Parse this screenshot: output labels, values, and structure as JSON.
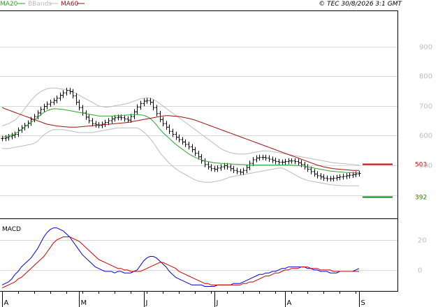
{
  "header": {
    "legend": [
      {
        "label": "MA20",
        "color": "#2aa52a"
      },
      {
        "label": "BBands",
        "color": "#bbbbbb"
      },
      {
        "label": "MA60",
        "color": "#a01010"
      }
    ],
    "copyright": "© TEC 30/8/2026 3:1 GMT"
  },
  "chart_data": [
    {
      "type": "line",
      "panel": "price",
      "ylim": [
        320,
        1020
      ],
      "yticks": [
        "900",
        "800",
        "700",
        "600",
        "500"
      ],
      "ytick_values": [
        900,
        800,
        700,
        600,
        500
      ],
      "xticks": [
        "A",
        "M",
        "J",
        "J",
        "A",
        "S"
      ],
      "xtick_index": [
        0,
        24,
        44,
        66,
        88,
        111
      ],
      "n_bars": 112,
      "price_close": [
        590,
        592,
        596,
        600,
        604,
        618,
        626,
        634,
        642,
        654,
        664,
        676,
        688,
        698,
        706,
        712,
        718,
        726,
        736,
        744,
        752,
        748,
        734,
        712,
        694,
        676,
        662,
        650,
        640,
        636,
        634,
        638,
        644,
        650,
        656,
        660,
        662,
        660,
        656,
        652,
        664,
        680,
        696,
        708,
        716,
        718,
        712,
        694,
        674,
        654,
        640,
        628,
        614,
        604,
        594,
        586,
        578,
        570,
        562,
        552,
        540,
        528,
        514,
        502,
        494,
        488,
        486,
        490,
        494,
        498,
        494,
        488,
        482,
        478,
        476,
        482,
        492,
        506,
        518,
        524,
        526,
        526,
        524,
        520,
        516,
        512,
        510,
        510,
        512,
        514,
        514,
        512,
        508,
        502,
        494,
        486,
        478,
        470,
        464,
        460,
        456,
        454,
        454,
        456,
        458,
        460,
        462,
        464,
        466,
        468,
        470,
        472
      ],
      "series": [
        {
          "name": "MA20",
          "color": "#2aa52a",
          "values": [
            594,
            596,
            598,
            602,
            606,
            612,
            620,
            628,
            636,
            644,
            652,
            660,
            670,
            678,
            684,
            688,
            690,
            690,
            689,
            688,
            686,
            684,
            682,
            680,
            678,
            676,
            674,
            672,
            670,
            668,
            666,
            666,
            666,
            666,
            666,
            666,
            667,
            668,
            668,
            669,
            670,
            671,
            671,
            670,
            668,
            664,
            658,
            648,
            636,
            622,
            610,
            600,
            590,
            580,
            570,
            562,
            554,
            546,
            538,
            532,
            526,
            522,
            518,
            514,
            512,
            510,
            508,
            507,
            506,
            505,
            504,
            504,
            503,
            503,
            502,
            502,
            501,
            500,
            500,
            500,
            500,
            500,
            500,
            500,
            500,
            500,
            500,
            500,
            500,
            500,
            500,
            499,
            499,
            498,
            496,
            494,
            492,
            490,
            488,
            486,
            484,
            482,
            480,
            479,
            478,
            477,
            476,
            475,
            475,
            474,
            474,
            474
          ]
        },
        {
          "name": "MA60",
          "color": "#a01010",
          "values": [
            695,
            690,
            686,
            682,
            678,
            674,
            670,
            666,
            662,
            658,
            654,
            650,
            646,
            642,
            638,
            636,
            634,
            632,
            631,
            630,
            629,
            628,
            628,
            628,
            629,
            630,
            631,
            632,
            633,
            634,
            635,
            636,
            637,
            638,
            639,
            640,
            641,
            642,
            643,
            644,
            646,
            648,
            650,
            652,
            654,
            656,
            658,
            660,
            662,
            664,
            666,
            667,
            667,
            666,
            665,
            664,
            662,
            660,
            658,
            655,
            652,
            648,
            644,
            640,
            636,
            632,
            628,
            624,
            620,
            616,
            612,
            608,
            604,
            600,
            596,
            592,
            588,
            584,
            580,
            576,
            572,
            568,
            564,
            560,
            556,
            552,
            548,
            544,
            540,
            536,
            532,
            528,
            524,
            520,
            516,
            512,
            508,
            504,
            500,
            497,
            494,
            492,
            490,
            488,
            487,
            486,
            485,
            484,
            483,
            482,
            482,
            482
          ]
        },
        {
          "name": "BBands-upper",
          "color": "#bbbbbb",
          "values": [
            632,
            636,
            640,
            646,
            652,
            662,
            676,
            690,
            704,
            718,
            730,
            740,
            748,
            754,
            758,
            760,
            760,
            760,
            758,
            756,
            754,
            752,
            748,
            742,
            736,
            730,
            724,
            718,
            712,
            706,
            700,
            698,
            696,
            696,
            698,
            700,
            702,
            704,
            706,
            708,
            712,
            716,
            720,
            724,
            726,
            728,
            726,
            722,
            716,
            708,
            700,
            692,
            684,
            676,
            668,
            660,
            652,
            644,
            636,
            628,
            620,
            612,
            604,
            596,
            588,
            580,
            572,
            564,
            556,
            550,
            546,
            542,
            540,
            538,
            537,
            537,
            538,
            540,
            542,
            544,
            546,
            548,
            548,
            548,
            546,
            544,
            542,
            540,
            538,
            536,
            534,
            532,
            530,
            528,
            526,
            524,
            522,
            520,
            518,
            516,
            514,
            512,
            510,
            508,
            507,
            506,
            505,
            504,
            503,
            502,
            501,
            500
          ]
        },
        {
          "name": "BBands-lower",
          "color": "#bbbbbb",
          "values": [
            556,
            556,
            556,
            558,
            560,
            562,
            564,
            566,
            568,
            570,
            574,
            580,
            592,
            602,
            610,
            616,
            620,
            620,
            620,
            620,
            618,
            616,
            614,
            612,
            610,
            610,
            610,
            610,
            610,
            612,
            614,
            616,
            618,
            620,
            622,
            624,
            626,
            626,
            626,
            626,
            626,
            626,
            626,
            620,
            612,
            602,
            590,
            576,
            560,
            544,
            530,
            518,
            506,
            496,
            488,
            480,
            474,
            468,
            462,
            456,
            450,
            446,
            444,
            442,
            442,
            442,
            444,
            446,
            448,
            452,
            456,
            460,
            462,
            464,
            466,
            468,
            470,
            472,
            474,
            476,
            478,
            480,
            482,
            484,
            486,
            488,
            490,
            490,
            486,
            480,
            474,
            468,
            462,
            456,
            452,
            448,
            446,
            444,
            442,
            440,
            438,
            436,
            434,
            433,
            432,
            431,
            430,
            430,
            430,
            430,
            430,
            430
          ]
        }
      ],
      "annotations": [
        {
          "label": "503",
          "value": 503,
          "color": "#cc0000",
          "text_color": "#cc0000"
        },
        {
          "label": "392",
          "value": 392,
          "color": "#008800",
          "text_color": "#2e7d00"
        }
      ]
    },
    {
      "type": "line",
      "panel": "macd",
      "title": "MACD",
      "ylim": [
        -14,
        32
      ],
      "yticks": [
        "20",
        "0"
      ],
      "ytick_values": [
        20,
        0
      ],
      "n_bars": 112,
      "series": [
        {
          "name": "MACD",
          "color": "#0000dd",
          "values": [
            -10,
            -9,
            -8,
            -6,
            -3,
            -1,
            2,
            4,
            6,
            8,
            11,
            14,
            18,
            22,
            25,
            27,
            28,
            28,
            27,
            26,
            24,
            22,
            19,
            16,
            13,
            10,
            8,
            6,
            4,
            2,
            1,
            0,
            -1,
            -1,
            -1,
            -2,
            -1,
            -1,
            -2,
            -2,
            -2,
            -1,
            0,
            3,
            6,
            8,
            9,
            9,
            8,
            6,
            4,
            2,
            -1,
            -3,
            -5,
            -6,
            -7,
            -8,
            -9,
            -10,
            -10,
            -10,
            -10,
            -11,
            -11,
            -11,
            -11,
            -10,
            -10,
            -10,
            -10,
            -10,
            -9,
            -9,
            -9,
            -8,
            -7,
            -6,
            -5,
            -4,
            -3,
            -3,
            -2,
            -2,
            -1,
            -1,
            0,
            1,
            1,
            2,
            2,
            2,
            2,
            2,
            2,
            1,
            1,
            0,
            0,
            -1,
            -1,
            -1,
            -2,
            -2,
            -2,
            -1,
            -1,
            -1,
            -1,
            -1,
            0,
            1
          ]
        },
        {
          "name": "Signal",
          "color": "#cc0000",
          "values": [
            -12,
            -11,
            -10,
            -9,
            -8,
            -6,
            -5,
            -3,
            -1,
            1,
            3,
            5,
            7,
            9,
            12,
            15,
            18,
            20,
            21,
            22,
            22,
            22,
            21,
            20,
            19,
            17,
            15,
            13,
            11,
            9,
            7,
            6,
            5,
            4,
            3,
            2,
            1,
            1,
            0,
            0,
            -1,
            -1,
            -1,
            -1,
            0,
            1,
            2,
            3,
            4,
            5,
            5,
            4,
            3,
            2,
            1,
            -1,
            -2,
            -3,
            -4,
            -5,
            -6,
            -7,
            -8,
            -9,
            -9,
            -10,
            -10,
            -10,
            -10,
            -10,
            -10,
            -10,
            -10,
            -10,
            -10,
            -9,
            -9,
            -8,
            -8,
            -7,
            -6,
            -5,
            -4,
            -4,
            -3,
            -2,
            -2,
            -1,
            0,
            0,
            1,
            1,
            1,
            2,
            2,
            2,
            1,
            1,
            1,
            0,
            0,
            0,
            0,
            -1,
            -1,
            -1,
            -1,
            -1,
            -1,
            -1,
            -1,
            -1
          ]
        }
      ]
    }
  ]
}
